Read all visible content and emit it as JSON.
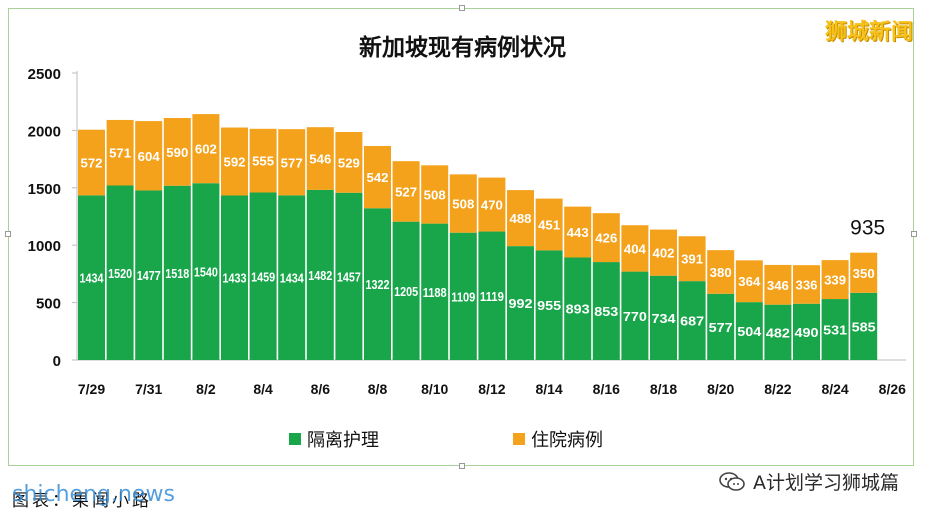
{
  "title": "新加坡现有病例状况",
  "brand": "狮城新闻",
  "footer": {
    "credit": "图表：果闻小路",
    "watermark": "shicheng.news",
    "account": "A计划学习狮城篇"
  },
  "colors": {
    "isolation": "#19a64b",
    "hospital": "#f4a21c",
    "axis_text": "#111111",
    "bar_label": "#ffffff"
  },
  "chart_data": {
    "type": "bar",
    "stacked": true,
    "title": "新加坡现有病例状况",
    "categories": [
      "7/29",
      "7/30",
      "7/31",
      "8/1",
      "8/2",
      "8/3",
      "8/4",
      "8/5",
      "8/6",
      "8/7",
      "8/8",
      "8/9",
      "8/10",
      "8/11",
      "8/12",
      "8/13",
      "8/14",
      "8/15",
      "8/16",
      "8/17",
      "8/18",
      "8/19",
      "8/20",
      "8/21",
      "8/22",
      "8/23",
      "8/24",
      "8/25"
    ],
    "x_tick_labels": [
      "7/29",
      "7/31",
      "8/2",
      "8/4",
      "8/6",
      "8/8",
      "8/10",
      "8/12",
      "8/14",
      "8/16",
      "8/18",
      "8/20",
      "8/22",
      "8/24",
      "8/26"
    ],
    "series": [
      {
        "name": "隔离护理",
        "color": "#19a64b",
        "values": [
          1434,
          1520,
          1477,
          1518,
          1540,
          1433,
          1459,
          1434,
          1482,
          1457,
          1322,
          1205,
          1188,
          1109,
          1119,
          992,
          955,
          893,
          853,
          770,
          734,
          687,
          577,
          504,
          482,
          490,
          531,
          585
        ]
      },
      {
        "name": "住院病例",
        "color": "#f4a21c",
        "values": [
          572,
          571,
          604,
          590,
          602,
          592,
          555,
          577,
          546,
          529,
          542,
          527,
          508,
          508,
          470,
          488,
          451,
          443,
          426,
          404,
          402,
          391,
          380,
          364,
          346,
          336,
          339,
          350
        ]
      }
    ],
    "y_ticks": [
      0,
      500,
      1000,
      1500,
      2000,
      2500
    ],
    "ylim": [
      0,
      2500
    ],
    "annotation": {
      "category": "8/25",
      "text": "935"
    },
    "legend": "bottom",
    "grid": false
  }
}
